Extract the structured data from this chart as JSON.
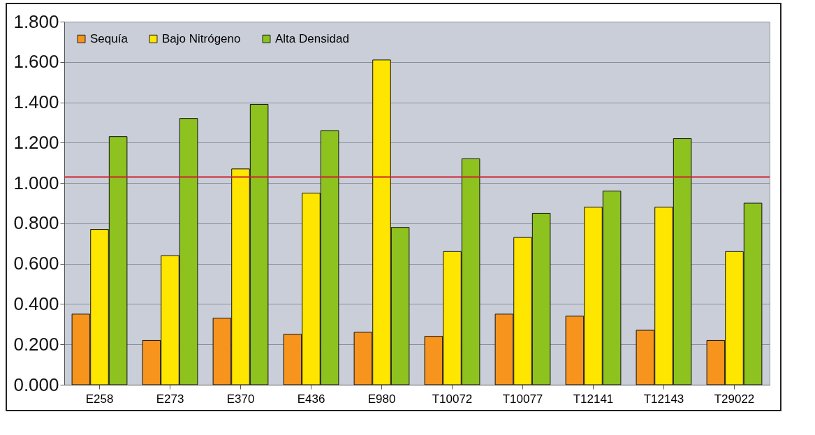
{
  "chart_data": {
    "type": "bar",
    "categories": [
      "E258",
      "E273",
      "E370",
      "E436",
      "E980",
      "T10072",
      "T10077",
      "T12141",
      "T12143",
      "T29022"
    ],
    "series": [
      {
        "name": "Sequía",
        "color": "#f7941d",
        "values": [
          0.35,
          0.22,
          0.33,
          0.25,
          0.26,
          0.24,
          0.35,
          0.34,
          0.27,
          0.22
        ]
      },
      {
        "name": "Bajo Nitrógeno",
        "color": "#ffe600",
        "values": [
          0.77,
          0.64,
          1.07,
          0.95,
          1.61,
          0.66,
          0.73,
          0.88,
          0.88,
          0.66
        ]
      },
      {
        "name": "Alta Densidad",
        "color": "#8dc21f",
        "values": [
          1.23,
          1.32,
          1.39,
          1.26,
          0.78,
          1.12,
          0.85,
          0.96,
          1.22,
          0.9
        ]
      }
    ],
    "ylim": [
      0,
      1.8
    ],
    "yticks": [
      {
        "value": 0,
        "label": "0.000"
      },
      {
        "value": 0.2,
        "label": "0.200"
      },
      {
        "value": 0.4,
        "label": "0.400"
      },
      {
        "value": 0.6,
        "label": "0.600"
      },
      {
        "value": 0.8,
        "label": "0.800"
      },
      {
        "value": 1,
        "label": "1.000"
      },
      {
        "value": 1.2,
        "label": "1.200"
      },
      {
        "value": 1.4,
        "label": "1.400"
      },
      {
        "value": 1.6,
        "label": "1.600"
      },
      {
        "value": 1.8,
        "label": "1.800"
      }
    ],
    "ref_lines": [
      {
        "axis": "y",
        "value": 1.03,
        "color": "#d0202e"
      }
    ],
    "grid": "y",
    "legend": "top left"
  }
}
